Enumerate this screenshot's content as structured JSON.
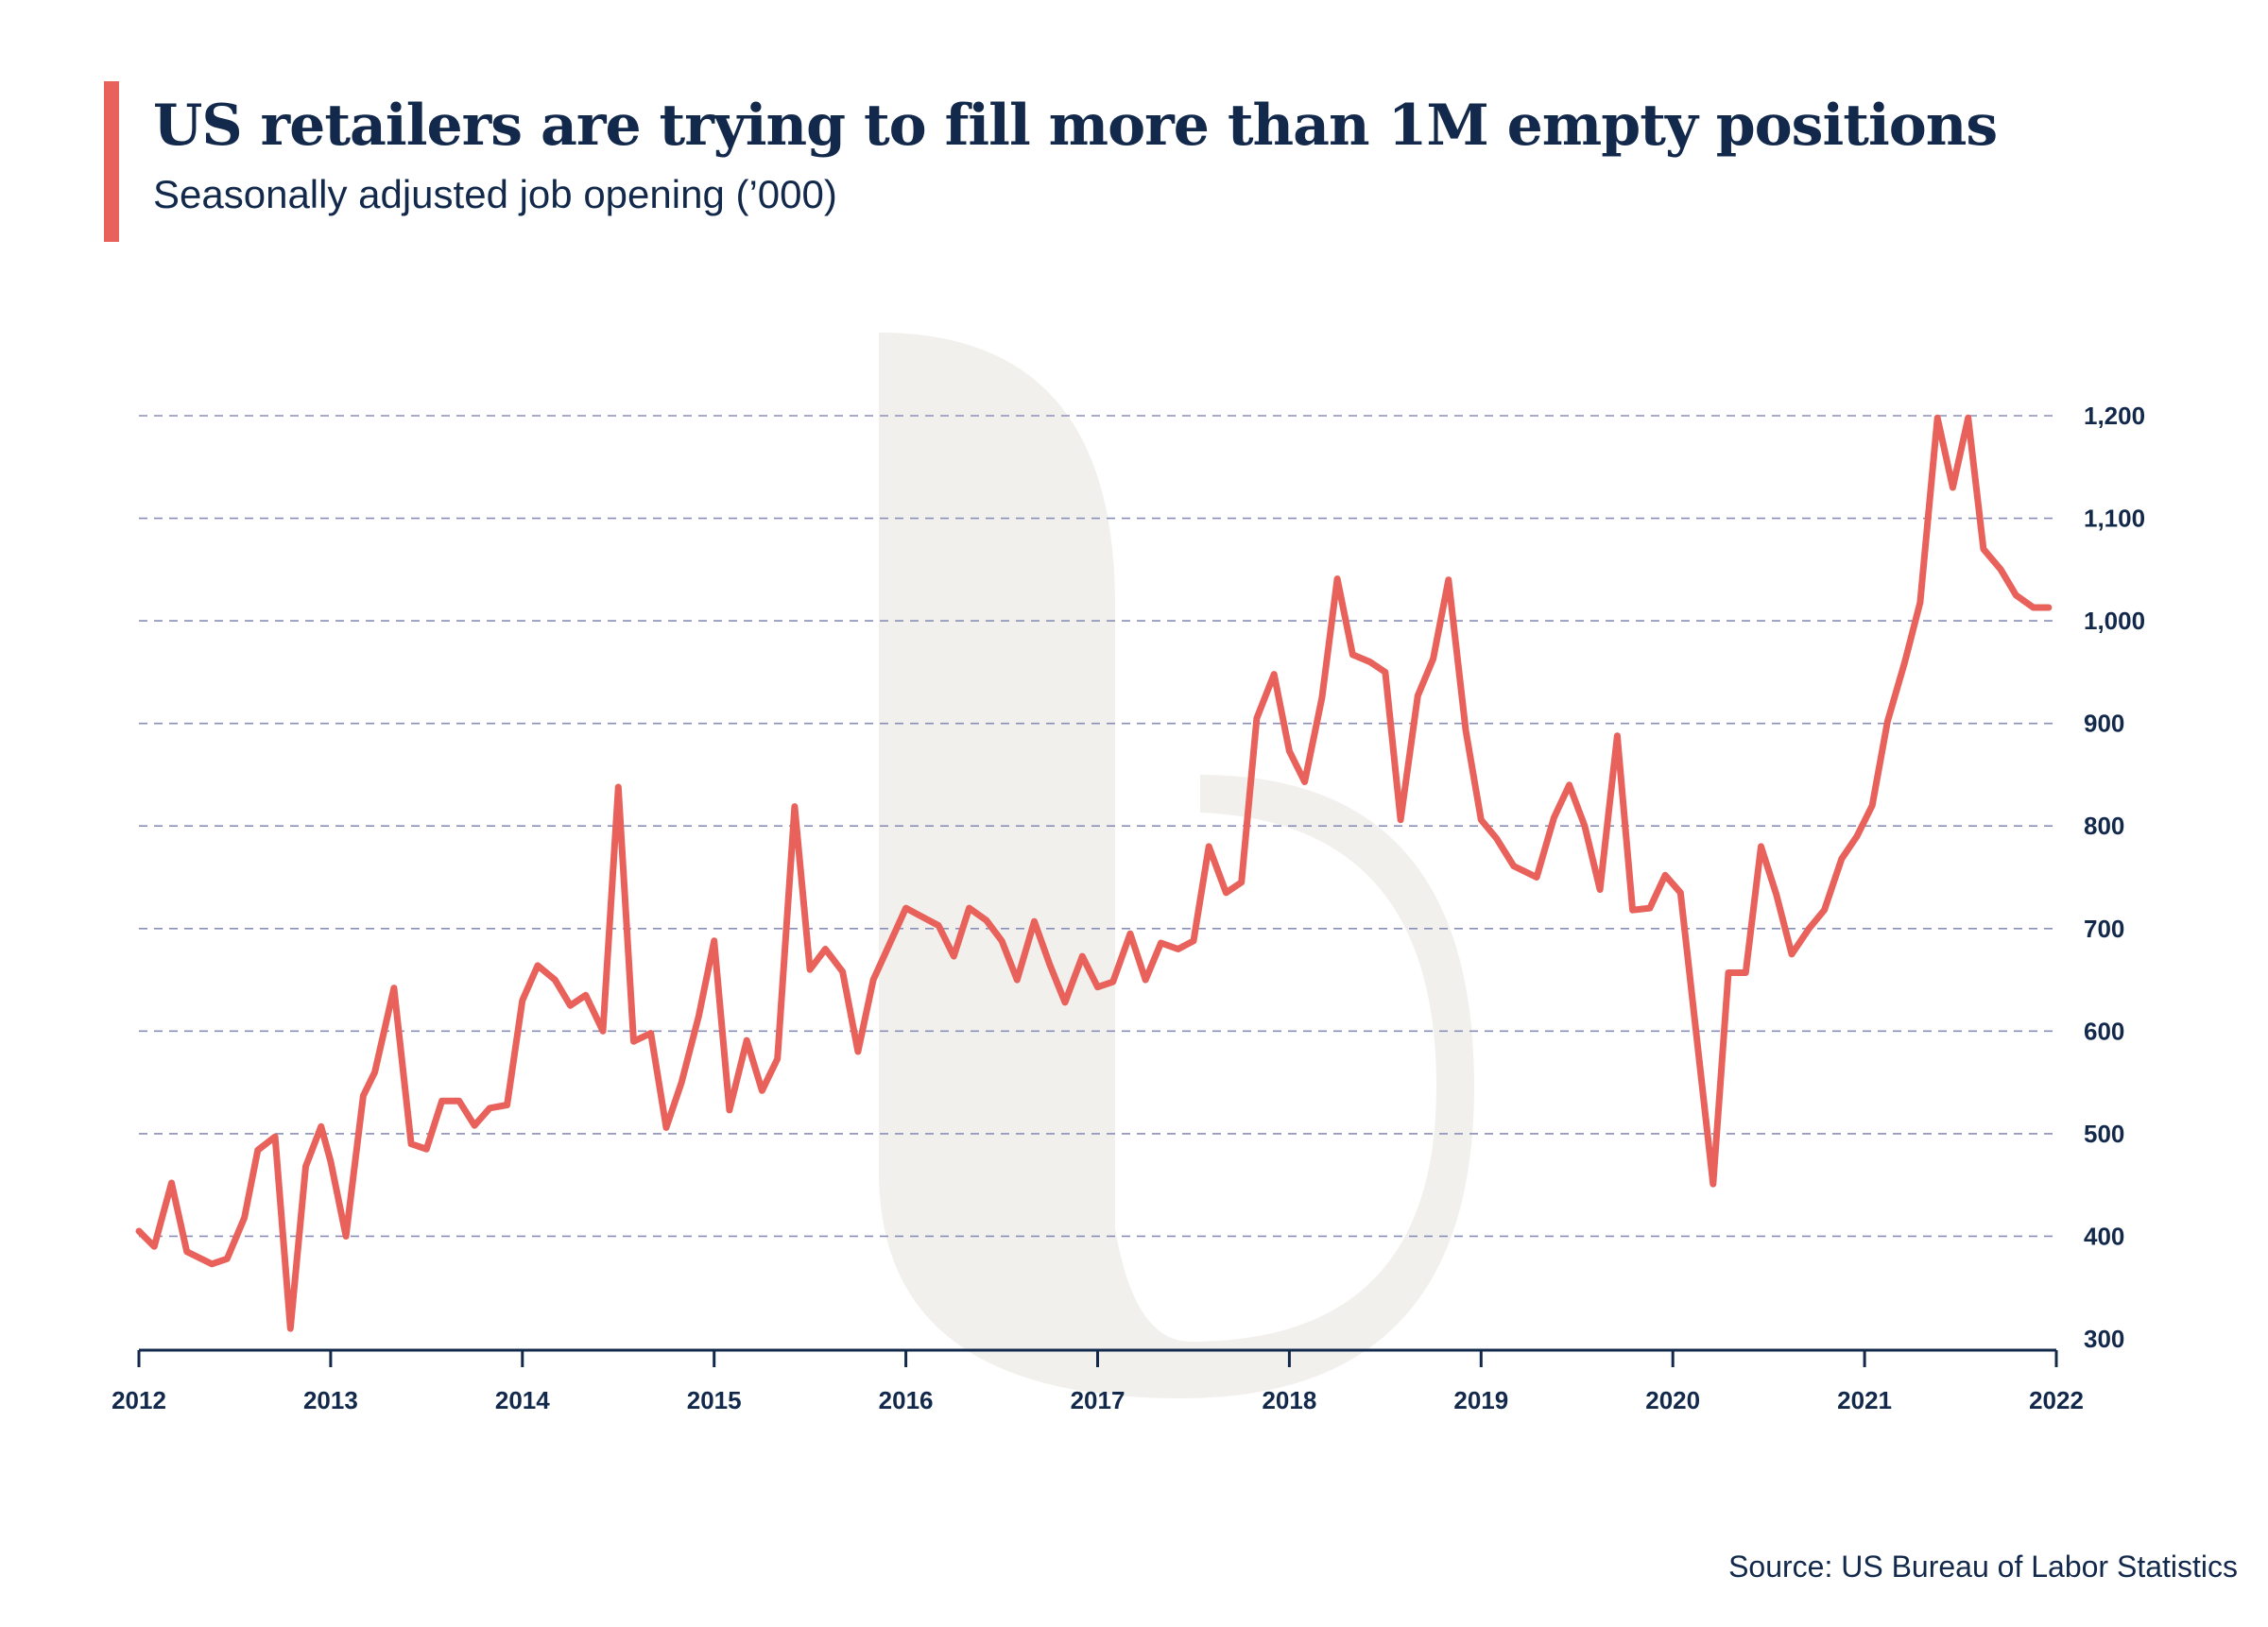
{
  "title": "US retailers are trying to fill more than 1M empty positions",
  "subtitle": "Seasonally adjusted job opening (’000)",
  "source": "Source: US Bureau of Labor Statistics",
  "colors": {
    "accent": "#e8625b",
    "line": "#e8625b",
    "text": "#13294b",
    "grid": "#8a8fb8",
    "watermark": "#f2f0ec"
  },
  "chart_data": {
    "type": "line",
    "title": "US retailers are trying to fill more than 1M empty positions",
    "subtitle": "Seasonally adjusted job opening (’000)",
    "xlabel": "",
    "ylabel": "",
    "xlim": [
      2012,
      2022
    ],
    "ylim": [
      300,
      1200
    ],
    "x_ticks": [
      2012,
      2013,
      2014,
      2015,
      2016,
      2017,
      2018,
      2019,
      2020,
      2021,
      2022
    ],
    "x_tick_labels": [
      "2012",
      "2013",
      "2014",
      "2015",
      "2016",
      "2017",
      "2018",
      "2019",
      "2020",
      "2021",
      "2022"
    ],
    "y_ticks": [
      300,
      400,
      500,
      600,
      700,
      800,
      900,
      1000,
      1100,
      1200
    ],
    "y_tick_labels": [
      "300",
      "400",
      "500",
      "600",
      "700",
      "800",
      "900",
      "1,000",
      "1,100",
      "1,200"
    ],
    "grid": "horizontal dashed",
    "y_axis_side": "right",
    "series": [
      {
        "color": "#e8625b",
        "x": [
          2012.0,
          2012.08,
          2012.17,
          2012.25,
          2012.38,
          2012.46,
          2012.55,
          2012.62,
          2012.71,
          2012.79,
          2012.87,
          2012.95,
          2013.0,
          2013.08,
          2013.17,
          2013.23,
          2013.33,
          2013.42,
          2013.5,
          2013.58,
          2013.67,
          2013.75,
          2013.83,
          2013.92,
          2014.0,
          2014.08,
          2014.17,
          2014.25,
          2014.33,
          2014.42,
          2014.5,
          2014.58,
          2014.67,
          2014.75,
          2014.83,
          2014.92,
          2015.0,
          2015.08,
          2015.17,
          2015.25,
          2015.33,
          2015.42,
          2015.5,
          2015.58,
          2015.67,
          2015.75,
          2015.83,
          2016.0,
          2016.08,
          2016.17,
          2016.25,
          2016.33,
          2016.42,
          2016.5,
          2016.58,
          2016.67,
          2016.75,
          2016.83,
          2016.92,
          2017.0,
          2017.08,
          2017.17,
          2017.25,
          2017.33,
          2017.42,
          2017.5,
          2017.58,
          2017.67,
          2017.75,
          2017.83,
          2017.92,
          2018.0,
          2018.08,
          2018.17,
          2018.25,
          2018.33,
          2018.42,
          2018.5,
          2018.58,
          2018.67,
          2018.75,
          2018.83,
          2018.92,
          2019.0,
          2019.08,
          2019.17,
          2019.29,
          2019.38,
          2019.46,
          2019.54,
          2019.62,
          2019.71,
          2019.79,
          2019.88,
          2019.96,
          2020.04,
          2020.21,
          2020.29,
          2020.38,
          2020.46,
          2020.54,
          2020.62,
          2020.71,
          2020.79,
          2020.88,
          2020.96,
          2021.04,
          2021.12,
          2021.21,
          2021.29,
          2021.38,
          2021.46,
          2021.54,
          2021.62,
          2021.71,
          2021.79,
          2021.88,
          2021.96
        ],
        "values": [
          405,
          390,
          452,
          385,
          373,
          378,
          418,
          484,
          497,
          310,
          468,
          507,
          473,
          400,
          537,
          560,
          642,
          490,
          485,
          532,
          532,
          508,
          525,
          528,
          630,
          664,
          650,
          625,
          635,
          600,
          838,
          590,
          598,
          506,
          550,
          615,
          688,
          523,
          591,
          542,
          573,
          819,
          660,
          680,
          658,
          580,
          650,
          720,
          712,
          703,
          673,
          720,
          708,
          688,
          650,
          707,
          665,
          628,
          673,
          643,
          648,
          695,
          650,
          686,
          680,
          688,
          780,
          735,
          745,
          905,
          948,
          873,
          843,
          925,
          1041,
          967,
          960,
          950,
          806,
          927,
          963,
          1040,
          893,
          806,
          788,
          761,
          750,
          808,
          840,
          800,
          738,
          888,
          718,
          720,
          752,
          735,
          451,
          657,
          657,
          780,
          733,
          675,
          700,
          718,
          768,
          790,
          820,
          902,
          960,
          1018,
          1198,
          1130,
          1198,
          1070,
          1050,
          1025,
          1013,
          1013
        ]
      }
    ]
  }
}
